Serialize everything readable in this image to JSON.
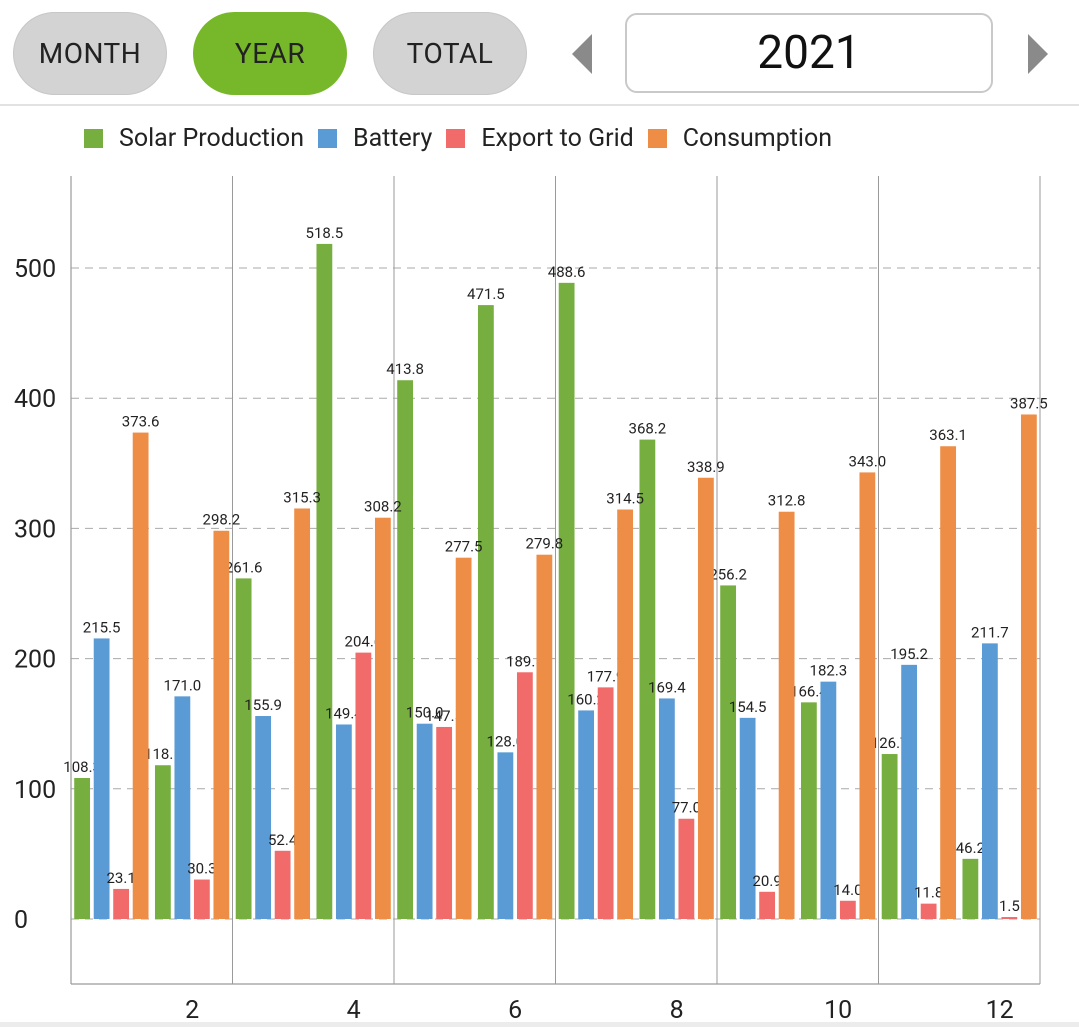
{
  "controls": {
    "month_label": "MONTH",
    "year_label": "YEAR",
    "total_label": "TOTAL",
    "selected_year": "2021",
    "active_tab": "YEAR",
    "prev_icon": "triangle-left-icon",
    "next_icon": "triangle-right-icon"
  },
  "chart_data": {
    "type": "bar",
    "x": [
      1,
      2,
      3,
      4,
      5,
      6,
      7,
      8,
      9,
      10,
      11,
      12
    ],
    "x_tick_labels": [
      "2",
      "4",
      "6",
      "8",
      "10",
      "12"
    ],
    "x_ticks": [
      2,
      4,
      6,
      8,
      10,
      12
    ],
    "y_ticks": [
      0,
      100,
      200,
      300,
      400,
      500
    ],
    "ylim": [
      -50,
      567
    ],
    "xlim": [
      0.5,
      12.5
    ],
    "grid": "horizontal dashed",
    "legend_placement": "top-left",
    "series": [
      {
        "name": "Solar Production",
        "color": "#76ae3f",
        "values": [
          108.3,
          118.1,
          261.6,
          518.5,
          413.8,
          471.5,
          488.6,
          368.2,
          256.2,
          166.4,
          126.7,
          46.2
        ]
      },
      {
        "name": "Battery",
        "color": "#5b9bd5",
        "values": [
          215.5,
          171.0,
          155.9,
          149.4,
          150.0,
          128.0,
          160.2,
          169.4,
          154.5,
          182.3,
          195.2,
          211.7
        ]
      },
      {
        "name": "Export to Grid",
        "color": "#f26b6b",
        "values": [
          23.1,
          30.3,
          52.4,
          204.6,
          147.5,
          189.5,
          177.9,
          77.0,
          20.9,
          14.0,
          11.8,
          1.5
        ]
      },
      {
        "name": "Consumption",
        "color": "#ee8d45",
        "values": [
          373.6,
          298.2,
          315.3,
          308.2,
          277.5,
          279.8,
          314.5,
          338.9,
          312.8,
          343.0,
          363.1,
          387.5
        ]
      }
    ]
  }
}
